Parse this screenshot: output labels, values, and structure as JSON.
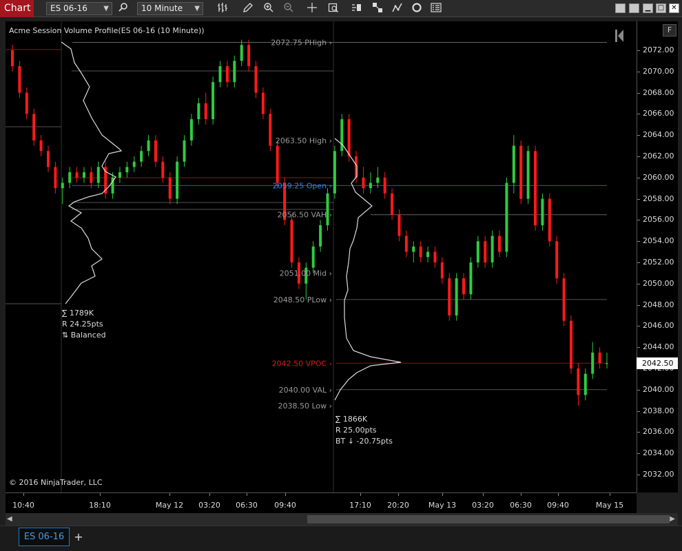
{
  "toolbar": {
    "tab_label": "Chart",
    "instrument": "ES 06-16",
    "interval": "10 Minute",
    "icons": [
      "search-icon",
      "bar-type-icon",
      "pencil-icon",
      "zoom-in-icon",
      "zoom-out-icon",
      "crosshair-icon",
      "data-box-icon",
      "strategy-icon",
      "templates-icon",
      "indicators-icon",
      "refresh-icon",
      "properties-icon"
    ]
  },
  "window_controls": [
    "minimize",
    "restore",
    "maximize",
    "close"
  ],
  "chart": {
    "indicator_title": "Acme Session Volume Profile(ES 06-16 (10 Minute))",
    "copyright": "© 2016 NinjaTrader, LLC",
    "f_button": "F",
    "session1_stats": [
      "∑ 1789K",
      "R 24.25pts",
      "⇅ Balanced"
    ],
    "session2_stats": [
      "∑ 1866K",
      "R 25.00pts",
      "BT ↓ -20.75pts"
    ],
    "level_labels": [
      {
        "text": "2072.75 PHigh ›",
        "price": 2072.75,
        "color": "#9a9a9a"
      },
      {
        "text": "2063.50 High ›",
        "price": 2063.5,
        "color": "#9a9a9a"
      },
      {
        "text": "2059.25 Open ›",
        "price": 2059.25,
        "color": "#3b82e6"
      },
      {
        "text": "2056.50 VAH ›",
        "price": 2056.5,
        "color": "#9a9a9a"
      },
      {
        "text": "2051.00 Mid ›",
        "price": 2051.0,
        "color": "#9a9a9a"
      },
      {
        "text": "2048.50 PLow ›",
        "price": 2048.5,
        "color": "#9a9a9a"
      },
      {
        "text": "2042.50 VPOC ›",
        "price": 2042.5,
        "color": "#e01818"
      },
      {
        "text": "2040.00 VAL ›",
        "price": 2040.0,
        "color": "#9a9a9a"
      },
      {
        "text": "2038.50 Low ›",
        "price": 2038.5,
        "color": "#9a9a9a"
      }
    ],
    "price_axis": [
      "2072.00",
      "2070.00",
      "2068.00",
      "2066.00",
      "2064.00",
      "2062.00",
      "2060.00",
      "2058.00",
      "2056.00",
      "2054.00",
      "2052.00",
      "2050.00",
      "2048.00",
      "2046.00",
      "2044.00",
      "2042.00",
      "2040.00",
      "2038.00",
      "2036.00",
      "2034.00",
      "2032.00"
    ],
    "last_price": "2042.50",
    "time_axis": [
      "10:40",
      "18:10",
      "May 12",
      "03:20",
      "06:30",
      "09:40",
      "17:10",
      "20:20",
      "May 13",
      "03:20",
      "06:30",
      "09:40",
      "May 15"
    ]
  },
  "chart_data": {
    "type": "candlestick",
    "instrument": "ES 06-16",
    "interval": "10 Minute",
    "ylim": [
      2030.5,
      2074.5
    ],
    "up_color": "#2ecc40",
    "down_color": "#ff1a1a",
    "bars": [
      {
        "o": 2072.0,
        "h": 2072.5,
        "l": 2070.0,
        "c": 2070.5
      },
      {
        "o": 2070.5,
        "h": 2071.0,
        "l": 2067.5,
        "c": 2068.0
      },
      {
        "o": 2068.0,
        "h": 2068.5,
        "l": 2065.5,
        "c": 2066.0
      },
      {
        "o": 2066.0,
        "h": 2066.5,
        "l": 2063.0,
        "c": 2063.5
      },
      {
        "o": 2063.5,
        "h": 2064.0,
        "l": 2062.0,
        "c": 2062.5
      },
      {
        "o": 2062.5,
        "h": 2063.0,
        "l": 2060.5,
        "c": 2061.0
      },
      {
        "o": 2061.0,
        "h": 2061.5,
        "l": 2058.5,
        "c": 2059.0
      },
      {
        "o": 2059.0,
        "h": 2060.0,
        "l": 2057.5,
        "c": 2059.5
      },
      {
        "o": 2059.5,
        "h": 2061.0,
        "l": 2059.0,
        "c": 2060.5
      },
      {
        "o": 2060.5,
        "h": 2061.0,
        "l": 2059.5,
        "c": 2060.0
      },
      {
        "o": 2060.0,
        "h": 2061.0,
        "l": 2059.5,
        "c": 2060.5
      },
      {
        "o": 2060.5,
        "h": 2061.0,
        "l": 2059.0,
        "c": 2059.5
      },
      {
        "o": 2059.5,
        "h": 2061.5,
        "l": 2059.0,
        "c": 2061.0
      },
      {
        "o": 2061.0,
        "h": 2061.5,
        "l": 2058.0,
        "c": 2058.5
      },
      {
        "o": 2058.5,
        "h": 2060.5,
        "l": 2058.0,
        "c": 2060.0
      },
      {
        "o": 2060.0,
        "h": 2061.0,
        "l": 2059.5,
        "c": 2060.5
      },
      {
        "o": 2060.5,
        "h": 2061.5,
        "l": 2060.0,
        "c": 2061.0
      },
      {
        "o": 2061.0,
        "h": 2062.0,
        "l": 2060.5,
        "c": 2061.5
      },
      {
        "o": 2061.5,
        "h": 2063.0,
        "l": 2061.0,
        "c": 2062.5
      },
      {
        "o": 2062.5,
        "h": 2064.0,
        "l": 2062.0,
        "c": 2063.5
      },
      {
        "o": 2063.5,
        "h": 2064.0,
        "l": 2061.0,
        "c": 2061.5
      },
      {
        "o": 2061.5,
        "h": 2062.0,
        "l": 2059.5,
        "c": 2060.0
      },
      {
        "o": 2060.0,
        "h": 2060.5,
        "l": 2057.5,
        "c": 2058.0
      },
      {
        "o": 2058.0,
        "h": 2062.0,
        "l": 2057.5,
        "c": 2061.5
      },
      {
        "o": 2061.5,
        "h": 2064.0,
        "l": 2061.0,
        "c": 2063.5
      },
      {
        "o": 2063.5,
        "h": 2066.0,
        "l": 2063.0,
        "c": 2065.5
      },
      {
        "o": 2065.5,
        "h": 2067.5,
        "l": 2065.0,
        "c": 2067.0
      },
      {
        "o": 2067.0,
        "h": 2068.0,
        "l": 2065.0,
        "c": 2065.5
      },
      {
        "o": 2065.5,
        "h": 2069.5,
        "l": 2065.0,
        "c": 2069.0
      },
      {
        "o": 2069.0,
        "h": 2071.0,
        "l": 2068.5,
        "c": 2070.5
      },
      {
        "o": 2070.5,
        "h": 2071.0,
        "l": 2068.5,
        "c": 2069.0
      },
      {
        "o": 2069.0,
        "h": 2071.5,
        "l": 2068.5,
        "c": 2071.0
      },
      {
        "o": 2071.0,
        "h": 2073.0,
        "l": 2070.5,
        "c": 2072.5
      },
      {
        "o": 2072.5,
        "h": 2073.0,
        "l": 2070.0,
        "c": 2070.5
      },
      {
        "o": 2070.5,
        "h": 2071.0,
        "l": 2067.5,
        "c": 2068.0
      },
      {
        "o": 2068.0,
        "h": 2068.5,
        "l": 2065.5,
        "c": 2066.0
      },
      {
        "o": 2066.0,
        "h": 2066.5,
        "l": 2062.5,
        "c": 2063.0
      },
      {
        "o": 2063.0,
        "h": 2063.5,
        "l": 2059.0,
        "c": 2059.5
      },
      {
        "o": 2059.5,
        "h": 2060.0,
        "l": 2055.5,
        "c": 2056.0
      },
      {
        "o": 2056.0,
        "h": 2056.5,
        "l": 2051.5,
        "c": 2052.0
      },
      {
        "o": 2052.0,
        "h": 2052.5,
        "l": 2049.5,
        "c": 2050.0
      },
      {
        "o": 2050.0,
        "h": 2052.0,
        "l": 2048.5,
        "c": 2051.5
      },
      {
        "o": 2051.5,
        "h": 2054.0,
        "l": 2051.0,
        "c": 2053.5
      },
      {
        "o": 2053.5,
        "h": 2056.0,
        "l": 2053.0,
        "c": 2055.5
      },
      {
        "o": 2055.5,
        "h": 2059.0,
        "l": 2055.0,
        "c": 2058.5
      },
      {
        "o": 2058.5,
        "h": 2063.0,
        "l": 2058.0,
        "c": 2062.5
      },
      {
        "o": 2062.5,
        "h": 2066.0,
        "l": 2062.0,
        "c": 2065.5
      },
      {
        "o": 2065.5,
        "h": 2066.0,
        "l": 2061.5,
        "c": 2062.0
      },
      {
        "o": 2062.0,
        "h": 2062.5,
        "l": 2059.5,
        "c": 2060.0
      },
      {
        "o": 2060.0,
        "h": 2061.0,
        "l": 2058.5,
        "c": 2059.0
      },
      {
        "o": 2059.0,
        "h": 2060.5,
        "l": 2058.5,
        "c": 2059.5
      },
      {
        "o": 2059.5,
        "h": 2061.0,
        "l": 2059.0,
        "c": 2060.0
      },
      {
        "o": 2060.0,
        "h": 2060.5,
        "l": 2058.0,
        "c": 2058.5
      },
      {
        "o": 2058.5,
        "h": 2059.0,
        "l": 2056.0,
        "c": 2056.5
      },
      {
        "o": 2056.5,
        "h": 2057.0,
        "l": 2054.0,
        "c": 2054.5
      },
      {
        "o": 2054.5,
        "h": 2055.0,
        "l": 2052.5,
        "c": 2053.0
      },
      {
        "o": 2053.0,
        "h": 2054.0,
        "l": 2052.0,
        "c": 2053.5
      },
      {
        "o": 2053.5,
        "h": 2054.0,
        "l": 2052.0,
        "c": 2052.5
      },
      {
        "o": 2052.5,
        "h": 2053.5,
        "l": 2052.0,
        "c": 2053.0
      },
      {
        "o": 2053.0,
        "h": 2053.5,
        "l": 2051.5,
        "c": 2052.0
      },
      {
        "o": 2052.0,
        "h": 2052.5,
        "l": 2050.0,
        "c": 2050.5
      },
      {
        "o": 2050.5,
        "h": 2051.0,
        "l": 2046.5,
        "c": 2047.0
      },
      {
        "o": 2047.0,
        "h": 2051.0,
        "l": 2046.5,
        "c": 2050.5
      },
      {
        "o": 2050.5,
        "h": 2051.0,
        "l": 2048.5,
        "c": 2049.0
      },
      {
        "o": 2049.0,
        "h": 2052.5,
        "l": 2048.5,
        "c": 2052.0
      },
      {
        "o": 2052.0,
        "h": 2054.5,
        "l": 2051.5,
        "c": 2054.0
      },
      {
        "o": 2054.0,
        "h": 2054.5,
        "l": 2051.5,
        "c": 2052.0
      },
      {
        "o": 2052.0,
        "h": 2055.0,
        "l": 2051.5,
        "c": 2054.5
      },
      {
        "o": 2054.5,
        "h": 2055.0,
        "l": 2052.5,
        "c": 2053.0
      },
      {
        "o": 2053.0,
        "h": 2060.0,
        "l": 2052.5,
        "c": 2059.5
      },
      {
        "o": 2059.5,
        "h": 2064.0,
        "l": 2058.5,
        "c": 2063.0
      },
      {
        "o": 2063.0,
        "h": 2063.5,
        "l": 2057.5,
        "c": 2058.0
      },
      {
        "o": 2058.0,
        "h": 2063.0,
        "l": 2057.5,
        "c": 2062.5
      },
      {
        "o": 2062.5,
        "h": 2063.0,
        "l": 2055.0,
        "c": 2055.5
      },
      {
        "o": 2055.5,
        "h": 2058.5,
        "l": 2055.0,
        "c": 2058.0
      },
      {
        "o": 2058.0,
        "h": 2058.5,
        "l": 2053.5,
        "c": 2054.0
      },
      {
        "o": 2054.0,
        "h": 2054.5,
        "l": 2050.0,
        "c": 2050.5
      },
      {
        "o": 2050.5,
        "h": 2051.0,
        "l": 2046.0,
        "c": 2046.5
      },
      {
        "o": 2046.5,
        "h": 2047.0,
        "l": 2041.5,
        "c": 2042.0
      },
      {
        "o": 2042.0,
        "h": 2042.5,
        "l": 2038.5,
        "c": 2039.5
      },
      {
        "o": 2039.5,
        "h": 2042.0,
        "l": 2039.0,
        "c": 2041.5
      },
      {
        "o": 2041.5,
        "h": 2044.5,
        "l": 2041.0,
        "c": 2043.5
      },
      {
        "o": 2043.5,
        "h": 2044.0,
        "l": 2042.0,
        "c": 2042.5
      },
      {
        "o": 2042.5,
        "h": 2043.5,
        "l": 2042.0,
        "c": 2042.5
      }
    ],
    "profiles": [
      {
        "session": 1,
        "volume": "1789K",
        "range": "24.25pts"
      },
      {
        "session": 2,
        "volume": "1866K",
        "range": "25.00pts",
        "vpoc": 2042.5,
        "vah": 2056.5,
        "val": 2040.0
      }
    ]
  }
}
